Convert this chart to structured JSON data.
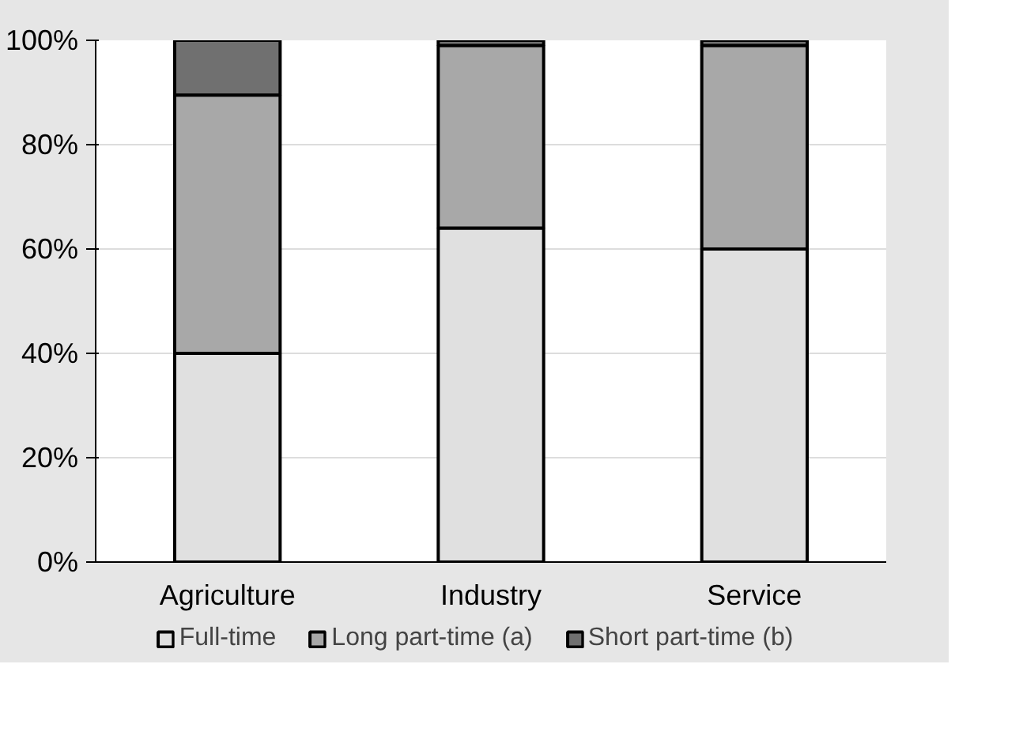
{
  "chart_data": {
    "type": "bar",
    "stacked": true,
    "categories": [
      "Agriculture",
      "Industry",
      "Service"
    ],
    "series": [
      {
        "name": "Full-time",
        "color": "#e0e0e0",
        "values": [
          40,
          64,
          60
        ]
      },
      {
        "name": "Long part-time (a)",
        "color": "#a8a8a8",
        "values": [
          49.5,
          35,
          39
        ]
      },
      {
        "name": "Short part-time (b)",
        "color": "#707070",
        "values": [
          10.5,
          1,
          1
        ]
      }
    ],
    "ylim": [
      0,
      100
    ],
    "yticks": [
      {
        "value": 0,
        "label": "0%"
      },
      {
        "value": 20,
        "label": "20%"
      },
      {
        "value": 40,
        "label": "40%"
      },
      {
        "value": 60,
        "label": "60%"
      },
      {
        "value": 80,
        "label": "80%"
      },
      {
        "value": 100,
        "label": "100%"
      }
    ],
    "grid": "y",
    "legend": "bottom"
  }
}
